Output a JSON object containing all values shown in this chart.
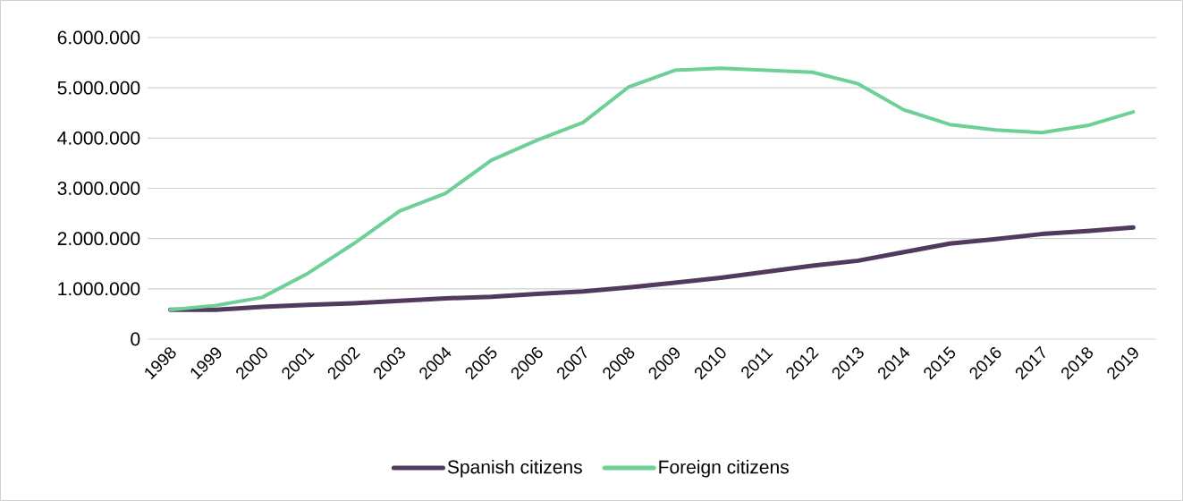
{
  "chart_data": {
    "type": "line",
    "categories": [
      "1998",
      "1999",
      "2000",
      "2001",
      "2002",
      "2003",
      "2004",
      "2005",
      "2006",
      "2007",
      "2008",
      "2009",
      "2010",
      "2011",
      "2012",
      "2013",
      "2014",
      "2015",
      "2016",
      "2017",
      "2018",
      "2019"
    ],
    "series": [
      {
        "name": "Spanish citizens",
        "color": "#523a5e",
        "values": [
          585000,
          585000,
          640000,
          680000,
          710000,
          760000,
          810000,
          840000,
          900000,
          950000,
          1030000,
          1120000,
          1220000,
          1340000,
          1460000,
          1560000,
          1730000,
          1900000,
          1990000,
          2090000,
          2150000,
          2220000
        ]
      },
      {
        "name": "Foreign citizens",
        "color": "#6dd096",
        "values": [
          585000,
          670000,
          830000,
          1310000,
          1900000,
          2550000,
          2900000,
          3560000,
          3960000,
          4310000,
          5020000,
          5350000,
          5390000,
          5350000,
          5310000,
          5080000,
          4560000,
          4270000,
          4160000,
          4110000,
          4250000,
          4520000
        ]
      }
    ],
    "ylim": [
      0,
      6000000
    ],
    "yticks": [
      {
        "value": 0,
        "label": "0"
      },
      {
        "value": 1000000,
        "label": "1.000.000"
      },
      {
        "value": 2000000,
        "label": "2.000.000"
      },
      {
        "value": 3000000,
        "label": "3.000.000"
      },
      {
        "value": 4000000,
        "label": "4.000.000"
      },
      {
        "value": 5000000,
        "label": "5.000.000"
      },
      {
        "value": 6000000,
        "label": "6.000.000"
      }
    ],
    "grid": "y",
    "legend": "bottom",
    "line_style": "solid",
    "marker": "none"
  }
}
